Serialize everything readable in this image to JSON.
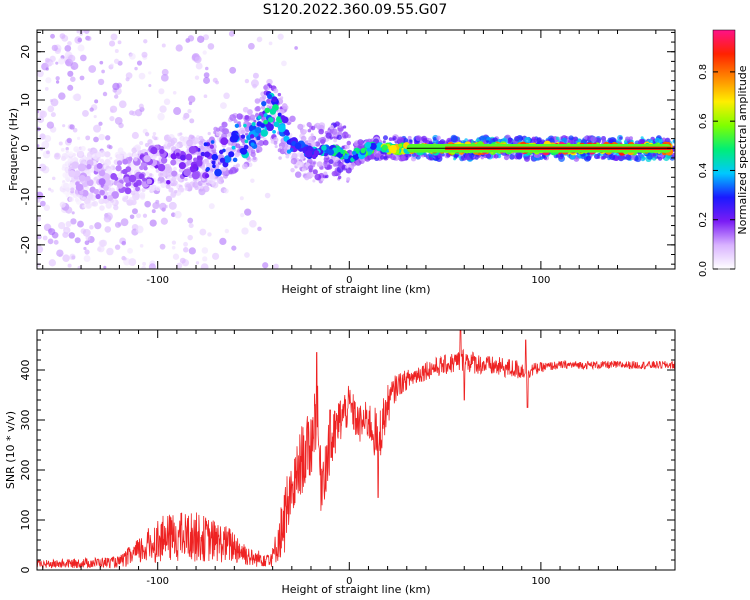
{
  "figure": {
    "title": "S120.2022.360.09.55.G07"
  },
  "chart_data": [
    {
      "type": "heatmap",
      "xlabel": "Height of straight line (km)",
      "ylabel": "Frequency (Hz)",
      "xlim": [
        -163,
        170
      ],
      "ylim": [
        -25,
        24.5
      ],
      "xticks": [
        -100,
        0,
        100
      ],
      "yticks": [
        20,
        10,
        0,
        -10,
        -20
      ],
      "colorbar": {
        "label": "Normalized spectral amplitude",
        "range": [
          0,
          0.97
        ],
        "ticks": [
          0.0,
          0.2,
          0.4,
          0.6,
          0.8
        ],
        "colors": [
          "#ffffff",
          "#d9b3ff",
          "#7a1cf5",
          "#1a1aff",
          "#00c8ff",
          "#00ee77",
          "#7fff00",
          "#ffee00",
          "#ff8800",
          "#ff2200",
          "#ff1188"
        ]
      },
      "ridge": {
        "note_points_x": [
          -140,
          -125,
          -110,
          -100,
          -90,
          -80,
          -70,
          -60,
          -50,
          -42,
          -35,
          -30,
          -25,
          -20,
          -15,
          -10,
          -5,
          0,
          10,
          20,
          40,
          60,
          100,
          168
        ],
        "note_points_y": [
          -6,
          -7,
          -5,
          -3,
          -4,
          -3,
          -2,
          1,
          3,
          8,
          5,
          1,
          0,
          -1,
          -1,
          0,
          -1,
          -2,
          0,
          0,
          0,
          0,
          0,
          0
        ],
        "amplitude": [
          0.1,
          0.15,
          0.15,
          0.2,
          0.2,
          0.25,
          0.3,
          0.35,
          0.4,
          0.45,
          0.4,
          0.3,
          0.3,
          0.35,
          0.4,
          0.45,
          0.5,
          0.45,
          0.5,
          0.6,
          0.75,
          0.85,
          0.85,
          0.85
        ]
      }
    },
    {
      "type": "line",
      "xlabel": "Height of straight line (km)",
      "ylabel": "SNR (10 * v/v)",
      "xlim": [
        -163,
        170
      ],
      "ylim": [
        0,
        480
      ],
      "xticks": [
        -100,
        0,
        100
      ],
      "yticks": [
        0,
        100,
        200,
        300,
        400
      ],
      "color": "#ee2222",
      "envelope_x": [
        -163,
        -120,
        -110,
        -100,
        -90,
        -80,
        -70,
        -60,
        -50,
        -40,
        -35,
        -30,
        -25,
        -20,
        -17,
        -15,
        -10,
        -5,
        0,
        5,
        10,
        15,
        20,
        25,
        30,
        40,
        50,
        60,
        70,
        80,
        90,
        95,
        100,
        110,
        120,
        140,
        170
      ],
      "envelope_y": [
        10,
        15,
        30,
        50,
        55,
        55,
        50,
        40,
        20,
        20,
        80,
        150,
        220,
        250,
        330,
        180,
        240,
        300,
        330,
        290,
        300,
        260,
        330,
        370,
        380,
        400,
        410,
        420,
        410,
        405,
        400,
        400,
        405,
        410,
        410,
        410,
        410
      ],
      "noise": [
        6,
        8,
        25,
        40,
        45,
        45,
        35,
        30,
        12,
        20,
        40,
        60,
        70,
        70,
        80,
        70,
        60,
        50,
        40,
        40,
        40,
        60,
        40,
        25,
        20,
        20,
        20,
        25,
        20,
        20,
        20,
        15,
        10,
        8,
        8,
        8,
        8
      ],
      "spikes": [
        {
          "x": -17,
          "y": 435
        },
        {
          "x": -10,
          "y": 320
        },
        {
          "x": 15,
          "y": 145
        },
        {
          "x": 58,
          "y": 480
        },
        {
          "x": 60,
          "y": 340
        },
        {
          "x": 93,
          "y": 325
        },
        {
          "x": 92,
          "y": 460
        }
      ]
    }
  ]
}
